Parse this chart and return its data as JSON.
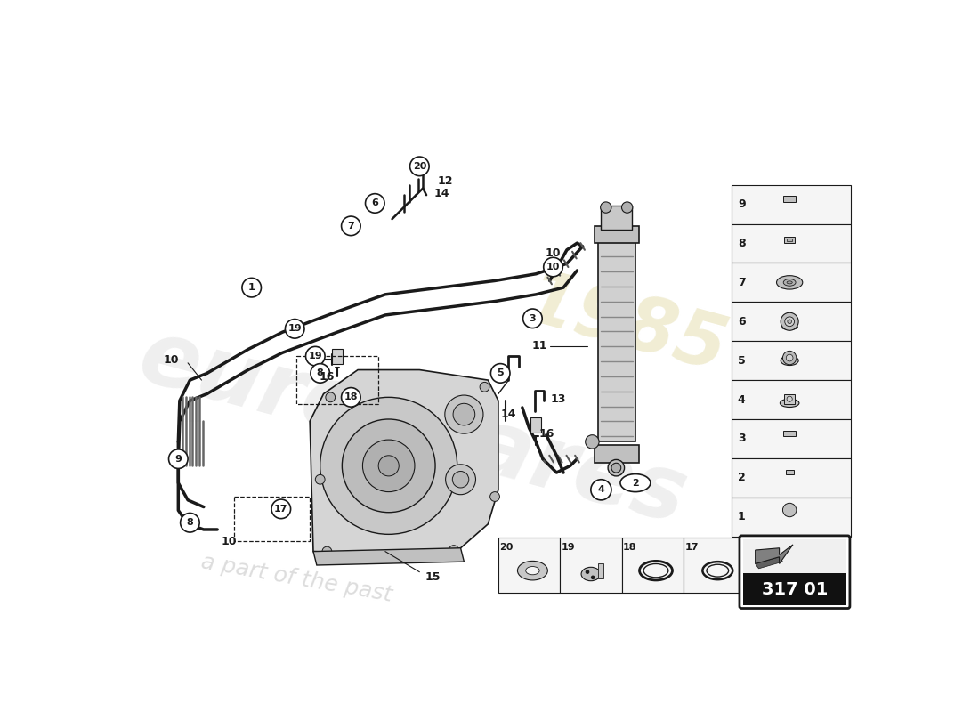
{
  "background_color": "#ffffff",
  "diagram_code": "317 01",
  "line_color": "#1a1a1a",
  "pipe_color": "#1a1a1a",
  "circle_fill": "#ffffff",
  "circle_edge": "#1a1a1a",
  "housing_fill": "#e0e0e0",
  "cooler_fill": "#d8d8d8",
  "watermark1": "eurospares",
  "watermark2": "1985",
  "watermark3": "a part of the past",
  "table_fill": "#f5f5f5",
  "table_edge": "#1a1a1a"
}
